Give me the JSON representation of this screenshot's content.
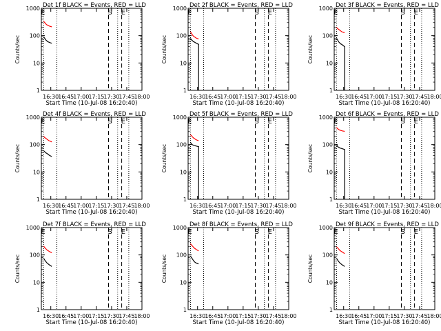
{
  "chart_data": [
    {
      "type": "line",
      "title": "Det 1f BLACK = Events, RED = LLD",
      "xlabel": "Start Time (10-Jul-08 16:20:40)",
      "ylabel": "Counts/sec",
      "x_ticks": [
        "16:30",
        "16:45",
        "17:00",
        "17:15",
        "17:30",
        "17:45",
        "18:00"
      ],
      "y_ticks": [
        "1",
        "10",
        "100",
        "1000"
      ],
      "ylim": [
        1,
        1000
      ],
      "y_scale": "log",
      "xlim": [
        "16:20:40",
        "18:00"
      ],
      "markers": {
        "E": "16:23",
        "S": "17:27",
        "E2": "17:40"
      },
      "dotted_lines": [
        "16:23",
        "16:36",
        "17:36",
        "17:47"
      ],
      "series": [
        {
          "name": "BLACK = Events",
          "color": "#000000",
          "x": [
            "16:23",
            "16:24",
            "16:25",
            "16:26",
            "16:27",
            "16:28",
            "16:29",
            "16:30",
            "16:31"
          ],
          "y": [
            90,
            80,
            70,
            65,
            60,
            58,
            56,
            54,
            53
          ]
        },
        {
          "name": "RED = LLD",
          "color": "#ff0000",
          "x": [
            "16:23",
            "16:24",
            "16:25",
            "16:26",
            "16:27",
            "16:28",
            "16:29",
            "16:30",
            "16:31"
          ],
          "y": [
            330,
            300,
            270,
            250,
            240,
            230,
            220,
            215,
            210
          ]
        }
      ]
    },
    {
      "type": "line",
      "title": "Det 2f BLACK = Events, RED = LLD",
      "xlabel": "Start Time (10-Jul-08 16:20:40)",
      "ylabel": "Counts/sec",
      "x_ticks": [
        "16:30",
        "16:45",
        "17:00",
        "17:15",
        "17:30",
        "17:45",
        "18:00"
      ],
      "y_ticks": [
        "1",
        "10",
        "100",
        "1000"
      ],
      "ylim": [
        1,
        1000
      ],
      "y_scale": "log",
      "xlim": [
        "16:20:40",
        "18:00"
      ],
      "markers": {
        "E": "16:23",
        "S": "17:27",
        "E2": "17:40"
      },
      "dotted_lines": [
        "16:23",
        "16:36",
        "17:36",
        "17:47"
      ],
      "series": [
        {
          "name": "BLACK = Events",
          "color": "#000000",
          "x": [
            "16:23",
            "16:24",
            "16:25",
            "16:26",
            "16:27",
            "16:28",
            "16:29",
            "16:30",
            "16:31",
            "16:31"
          ],
          "y": [
            80,
            70,
            65,
            60,
            58,
            55,
            52,
            50,
            48,
            1
          ]
        },
        {
          "name": "RED = LLD",
          "color": "#ff0000",
          "x": [
            "16:23",
            "16:24",
            "16:25",
            "16:26",
            "16:27",
            "16:28",
            "16:29",
            "16:30",
            "16:31"
          ],
          "y": [
            140,
            120,
            105,
            95,
            90,
            85,
            80,
            78,
            75
          ]
        }
      ]
    },
    {
      "type": "line",
      "title": "Det 3f BLACK = Events, RED = LLD",
      "xlabel": "Start Time (10-Jul-08 16:20:40)",
      "ylabel": "Counts/sec",
      "x_ticks": [
        "16:30",
        "16:45",
        "17:00",
        "17:15",
        "17:30",
        "17:45",
        "18:00"
      ],
      "y_ticks": [
        "1",
        "10",
        "100",
        "1000"
      ],
      "ylim": [
        1,
        1000
      ],
      "y_scale": "log",
      "xlim": [
        "16:20:40",
        "18:00"
      ],
      "markers": {
        "E": "16:23",
        "S": "17:27",
        "E2": "17:40"
      },
      "dotted_lines": [
        "16:23",
        "16:36",
        "17:36",
        "17:47"
      ],
      "series": [
        {
          "name": "BLACK = Events",
          "color": "#000000",
          "x": [
            "16:23",
            "16:24",
            "16:25",
            "16:26",
            "16:27",
            "16:28",
            "16:29",
            "16:30",
            "16:31",
            "16:31"
          ],
          "y": [
            80,
            70,
            60,
            55,
            50,
            48,
            45,
            42,
            40,
            1
          ]
        },
        {
          "name": "RED = LLD",
          "color": "#ff0000",
          "x": [
            "16:23",
            "16:24",
            "16:25",
            "16:26",
            "16:27",
            "16:28",
            "16:29",
            "16:30",
            "16:31"
          ],
          "y": [
            200,
            180,
            170,
            160,
            150,
            140,
            135,
            130,
            130
          ]
        }
      ]
    },
    {
      "type": "line",
      "title": "Det 4f BLACK = Events, RED = LLD",
      "xlabel": "Start Time (10-Jul-08 16:20:40)",
      "ylabel": "Counts/sec",
      "x_ticks": [
        "16:30",
        "16:45",
        "17:00",
        "17:15",
        "17:30",
        "17:45",
        "18:00"
      ],
      "y_ticks": [
        "1",
        "10",
        "100",
        "1000"
      ],
      "ylim": [
        1,
        1000
      ],
      "y_scale": "log",
      "xlim": [
        "16:20:40",
        "18:00"
      ],
      "markers": {
        "E": "16:23",
        "S": "17:27",
        "E2": "17:40"
      },
      "dotted_lines": [
        "16:23",
        "16:36",
        "17:36",
        "17:47"
      ],
      "series": [
        {
          "name": "BLACK = Events",
          "color": "#000000",
          "x": [
            "16:23",
            "16:24",
            "16:25",
            "16:26",
            "16:27",
            "16:28",
            "16:29",
            "16:30",
            "16:31"
          ],
          "y": [
            60,
            55,
            50,
            48,
            45,
            42,
            40,
            38,
            37
          ]
        },
        {
          "name": "RED = LLD",
          "color": "#ff0000",
          "x": [
            "16:23",
            "16:24",
            "16:25",
            "16:26",
            "16:27",
            "16:28",
            "16:29",
            "16:30",
            "16:31"
          ],
          "y": [
            200,
            180,
            170,
            160,
            150,
            140,
            135,
            130,
            125
          ]
        }
      ]
    },
    {
      "type": "line",
      "title": "Det 5f BLACK = Events, RED = LLD",
      "xlabel": "Start Time (10-Jul-08 16:20:40)",
      "ylabel": "Counts/sec",
      "x_ticks": [
        "16:30",
        "16:45",
        "17:00",
        "17:15",
        "17:30",
        "17:45",
        "18:00"
      ],
      "y_ticks": [
        "1",
        "10",
        "100",
        "1000"
      ],
      "ylim": [
        1,
        1000
      ],
      "y_scale": "log",
      "xlim": [
        "16:20:40",
        "18:00"
      ],
      "markers": {
        "E": "16:23",
        "S": "17:27",
        "E2": "17:40"
      },
      "dotted_lines": [
        "16:23",
        "16:36",
        "17:36",
        "17:47"
      ],
      "series": [
        {
          "name": "BLACK = Events",
          "color": "#000000",
          "x": [
            "16:23",
            "16:24",
            "16:25",
            "16:26",
            "16:27",
            "16:28",
            "16:29",
            "16:30",
            "16:31",
            "16:31"
          ],
          "y": [
            120,
            105,
            98,
            95,
            92,
            90,
            88,
            86,
            85,
            1
          ]
        },
        {
          "name": "RED = LLD",
          "color": "#ff0000",
          "x": [
            "16:23",
            "16:24",
            "16:25",
            "16:26",
            "16:27",
            "16:28",
            "16:29",
            "16:30",
            "16:31"
          ],
          "y": [
            230,
            210,
            190,
            175,
            165,
            155,
            148,
            142,
            138
          ]
        }
      ]
    },
    {
      "type": "line",
      "title": "Det 6f BLACK = Events, RED = LLD",
      "xlabel": "Start Time (10-Jul-08 16:20:40)",
      "ylabel": "Counts/sec",
      "x_ticks": [
        "16:30",
        "16:45",
        "17:00",
        "17:15",
        "17:30",
        "17:45",
        "18:00"
      ],
      "y_ticks": [
        "1",
        "10",
        "100",
        "1000"
      ],
      "ylim": [
        1,
        1000
      ],
      "y_scale": "log",
      "xlim": [
        "16:20:40",
        "18:00"
      ],
      "markers": {
        "E": "16:23",
        "S": "17:27",
        "E2": "17:40"
      },
      "dotted_lines": [
        "16:23",
        "16:36",
        "17:36",
        "17:47"
      ],
      "series": [
        {
          "name": "BLACK = Events",
          "color": "#000000",
          "x": [
            "16:23",
            "16:24",
            "16:25",
            "16:26",
            "16:27",
            "16:28",
            "16:29",
            "16:30",
            "16:31",
            "16:31"
          ],
          "y": [
            100,
            85,
            80,
            76,
            74,
            72,
            70,
            68,
            66,
            1
          ]
        },
        {
          "name": "RED = LLD",
          "color": "#ff0000",
          "x": [
            "16:23",
            "16:24",
            "16:25",
            "16:26",
            "16:27",
            "16:28",
            "16:29",
            "16:30",
            "16:31"
          ],
          "y": [
            420,
            380,
            360,
            340,
            330,
            320,
            315,
            310,
            305
          ]
        }
      ]
    },
    {
      "type": "line",
      "title": "Det 7f BLACK = Events, RED = LLD",
      "xlabel": "Start Time (10-Jul-08 16:20:40)",
      "ylabel": "Counts/sec",
      "x_ticks": [
        "16:30",
        "16:45",
        "17:00",
        "17:15",
        "17:30",
        "17:45",
        "18:00"
      ],
      "y_ticks": [
        "1",
        "10",
        "100",
        "1000"
      ],
      "ylim": [
        1,
        1000
      ],
      "y_scale": "log",
      "xlim": [
        "16:20:40",
        "18:00"
      ],
      "markers": {
        "E": "16:23",
        "S": "17:27",
        "E2": "17:40"
      },
      "dotted_lines": [
        "16:23",
        "16:36",
        "17:36",
        "17:47"
      ],
      "series": [
        {
          "name": "BLACK = Events",
          "color": "#000000",
          "x": [
            "16:23",
            "16:24",
            "16:25",
            "16:26",
            "16:27",
            "16:28",
            "16:29",
            "16:30",
            "16:31"
          ],
          "y": [
            75,
            65,
            58,
            52,
            48,
            45,
            42,
            40,
            38
          ]
        },
        {
          "name": "RED = LLD",
          "color": "#ff0000",
          "x": [
            "16:23",
            "16:24",
            "16:25",
            "16:26",
            "16:27",
            "16:28",
            "16:29",
            "16:30",
            "16:31"
          ],
          "y": [
            210,
            185,
            170,
            155,
            145,
            138,
            130,
            125,
            120
          ]
        }
      ]
    },
    {
      "type": "line",
      "title": "Det 8f BLACK = Events, RED = LLD",
      "xlabel": "Start Time (10-Jul-08 16:20:40)",
      "ylabel": "Counts/sec",
      "x_ticks": [
        "16:30",
        "16:45",
        "17:00",
        "17:15",
        "17:30",
        "17:45",
        "18:00"
      ],
      "y_ticks": [
        "1",
        "10",
        "100",
        "1000"
      ],
      "ylim": [
        1,
        1000
      ],
      "y_scale": "log",
      "xlim": [
        "16:20:40",
        "18:00"
      ],
      "markers": {
        "E": "16:23",
        "S": "17:27",
        "E2": "17:40"
      },
      "dotted_lines": [
        "16:23",
        "16:36",
        "17:36",
        "17:47"
      ],
      "series": [
        {
          "name": "BLACK = Events",
          "color": "#000000",
          "x": [
            "16:23",
            "16:24",
            "16:25",
            "16:26",
            "16:27",
            "16:28",
            "16:29",
            "16:30",
            "16:31"
          ],
          "y": [
            90,
            80,
            70,
            62,
            56,
            52,
            50,
            48,
            47
          ]
        },
        {
          "name": "RED = LLD",
          "color": "#ff0000",
          "x": [
            "16:23",
            "16:24",
            "16:25",
            "16:26",
            "16:27",
            "16:28",
            "16:29",
            "16:30",
            "16:31"
          ],
          "y": [
            260,
            230,
            210,
            190,
            175,
            165,
            155,
            148,
            140
          ]
        }
      ]
    },
    {
      "type": "line",
      "title": "Det 9f BLACK = Events, RED = LLD",
      "xlabel": "Start Time (10-Jul-08 16:20:40)",
      "ylabel": "Counts/sec",
      "x_ticks": [
        "16:30",
        "16:45",
        "17:00",
        "17:15",
        "17:30",
        "17:45",
        "18:00"
      ],
      "y_ticks": [
        "1",
        "10",
        "100",
        "1000"
      ],
      "ylim": [
        1,
        1000
      ],
      "y_scale": "log",
      "xlim": [
        "16:20:40",
        "18:00"
      ],
      "markers": {
        "E": "16:23",
        "S": "17:27",
        "E2": "17:40"
      },
      "dotted_lines": [
        "16:23",
        "16:36",
        "17:36",
        "17:47"
      ],
      "series": [
        {
          "name": "BLACK = Events",
          "color": "#000000",
          "x": [
            "16:23",
            "16:24",
            "16:25",
            "16:26",
            "16:27",
            "16:28",
            "16:29",
            "16:30",
            "16:31"
          ],
          "y": [
            75,
            65,
            58,
            52,
            48,
            45,
            42,
            40,
            38
          ]
        },
        {
          "name": "RED = LLD",
          "color": "#ff0000",
          "x": [
            "16:23",
            "16:24",
            "16:25",
            "16:26",
            "16:27",
            "16:28",
            "16:29",
            "16:30",
            "16:31"
          ],
          "y": [
            200,
            180,
            165,
            150,
            140,
            132,
            125,
            118,
            112
          ]
        }
      ]
    }
  ]
}
